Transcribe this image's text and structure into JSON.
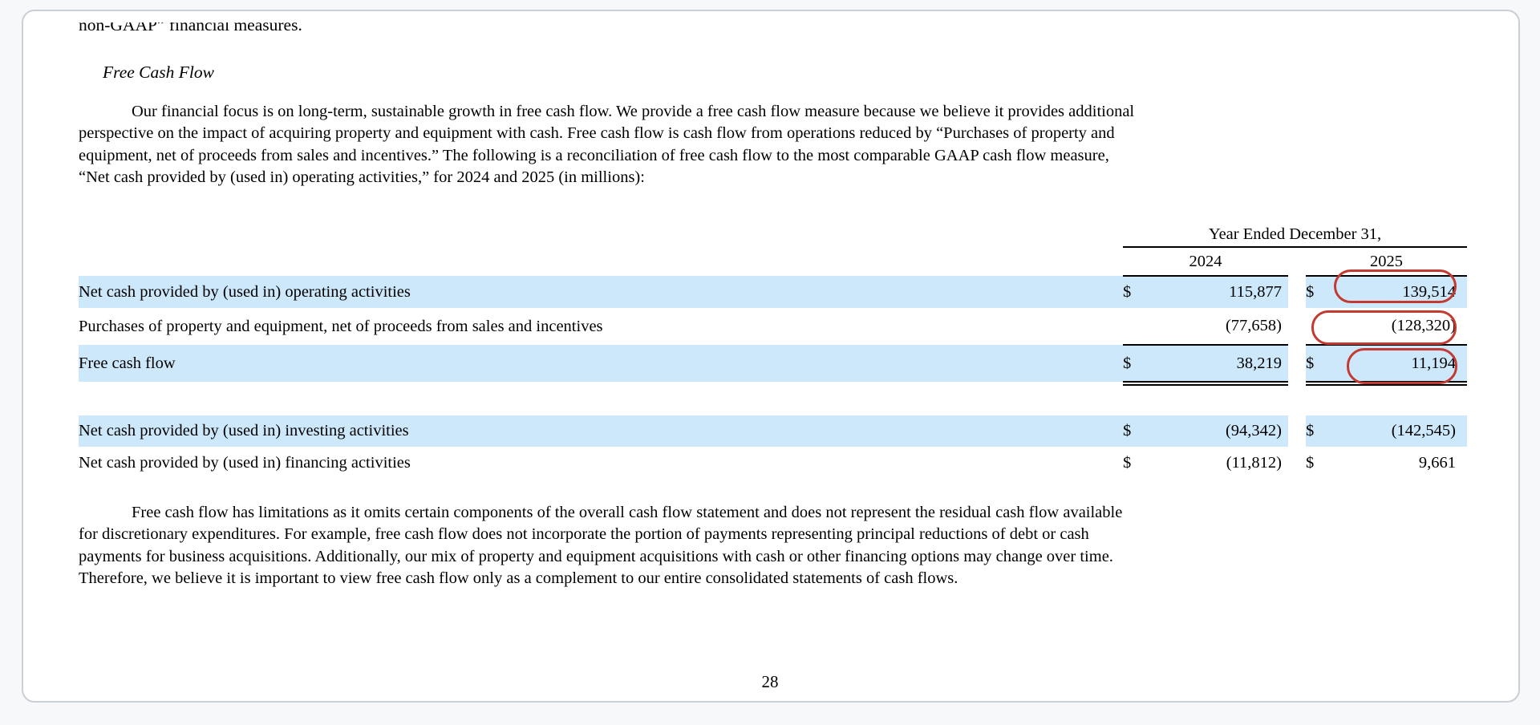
{
  "document": {
    "clipped_top_line": "non-GAAP” financial measures.",
    "section_heading": "Free Cash Flow",
    "paragraph1_lines": [
      "Our financial focus is on long-term, sustainable growth in free cash flow. We provide a free cash flow measure because we believe it provides additional",
      "perspective on the impact of acquiring property and equipment with cash. Free cash flow is cash flow from operations reduced by “Purchases of property and",
      "equipment, net of proceeds from sales and incentives.” The following is a reconciliation of free cash flow to the most comparable GAAP cash flow measure,",
      "“Net cash provided by (used in) operating activities,” for 2024 and 2025 (in millions):"
    ],
    "paragraph2_lines": [
      "Free cash flow has limitations as it omits certain components of the overall cash flow statement and does not represent the residual cash flow available",
      "for discretionary expenditures. For example, free cash flow does not incorporate the portion of payments representing principal reductions of debt or cash",
      "payments for business acquisitions. Additionally, our mix of property and equipment acquisitions with cash or other financing options may change over time.",
      "Therefore, we believe it is important to view free cash flow only as a complement to our entire consolidated statements of cash flows."
    ],
    "page_number": "28"
  },
  "table": {
    "span_header": "Year Ended December 31,",
    "col_2024": "2024",
    "col_2025": "2025",
    "rows": [
      {
        "label": "Net cash provided by (used in) operating activities",
        "d1": "$",
        "v2024": "115,877",
        "d2": "$",
        "v2025": "139,514"
      },
      {
        "label": "Purchases of property and equipment, net of proceeds from sales and incentives",
        "d1": "",
        "v2024": "(77,658)",
        "d2": "",
        "v2025": "(128,320)"
      },
      {
        "label": "Free cash flow",
        "d1": "$",
        "v2024": "38,219",
        "d2": "$",
        "v2025": "11,194"
      },
      {
        "label": "Net cash provided by (used in) investing activities",
        "d1": "$",
        "v2024": "(94,342)",
        "d2": "$",
        "v2025": "(142,545)"
      },
      {
        "label": "Net cash provided by (used in) financing activities",
        "d1": "$",
        "v2024": "(11,812)",
        "d2": "$",
        "v2025": "9,661"
      }
    ]
  },
  "annotations": {
    "circled_2025_values": [
      "139,514",
      "(128,320)",
      "11,194"
    ],
    "ink_color": "#c23a31"
  },
  "colors": {
    "row_highlight": "#cde8fa",
    "card_border": "#c9cfd7",
    "page_background": "#f6f8fa"
  }
}
